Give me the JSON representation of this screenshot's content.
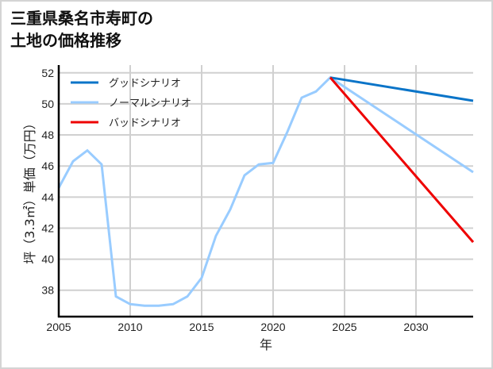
{
  "title": {
    "line1": "三重県桑名市寿町の",
    "line2": "土地の価格推移"
  },
  "chart_data": {
    "type": "line",
    "title": "三重県桑名市寿町の土地の価格推移",
    "xlabel": "年",
    "ylabel": "坪（3.3㎡）単価（万円）",
    "xlim": [
      2005,
      2034
    ],
    "ylim": [
      36.3,
      52.5
    ],
    "xticks": [
      2005,
      2010,
      2015,
      2020,
      2025,
      2030
    ],
    "yticks": [
      38,
      40,
      42,
      44,
      46,
      48,
      50,
      52
    ],
    "grid": true,
    "legend_position": "upper left",
    "series": [
      {
        "name": "グッドシナリオ",
        "color": "#0a74c8",
        "x": [
          2024,
          2034
        ],
        "values": [
          51.7,
          50.2
        ]
      },
      {
        "name": "ノーマルシナリオ",
        "color": "#99ccff",
        "x": [
          2005,
          2006,
          2007,
          2008,
          2009,
          2010,
          2011,
          2012,
          2013,
          2014,
          2015,
          2016,
          2017,
          2018,
          2019,
          2020,
          2021,
          2022,
          2023,
          2024,
          2034
        ],
        "values": [
          44.6,
          46.3,
          47.0,
          46.1,
          37.6,
          37.1,
          37.0,
          37.0,
          37.1,
          37.6,
          38.8,
          41.5,
          43.2,
          45.4,
          46.1,
          46.2,
          48.2,
          50.4,
          50.8,
          51.7,
          45.6
        ]
      },
      {
        "name": "バッドシナリオ",
        "color": "#ee0000",
        "x": [
          2024,
          2034
        ],
        "values": [
          51.7,
          41.1
        ]
      }
    ]
  },
  "colors": {
    "grid": "#d0d0d0",
    "axis": "#000000",
    "border": "#d4d4d4"
  }
}
